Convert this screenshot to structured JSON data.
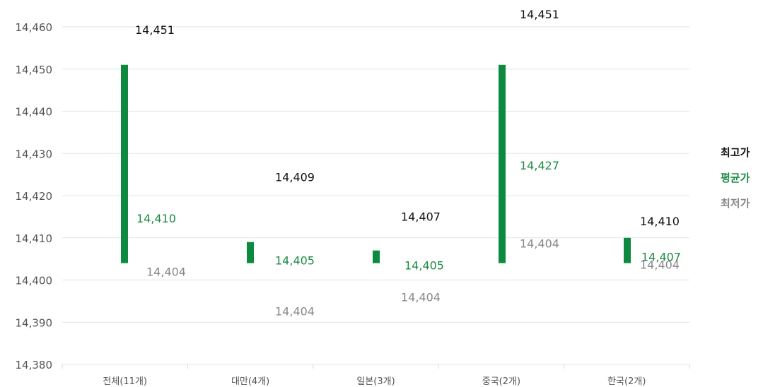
{
  "colors": {
    "high": "#111111",
    "avg": "#1e8a45",
    "low": "#888888",
    "bar": "#0d8a3f",
    "grid": "#e3e3e3",
    "axis_text": "#555555"
  },
  "legend": {
    "high": "최고가",
    "avg": "평균가",
    "low": "최저가"
  },
  "chart_data": {
    "type": "bar",
    "categories": [
      "전체(11개)",
      "대만(4개)",
      "일본(3개)",
      "중국(2개)",
      "한국(2개)"
    ],
    "ylim": [
      14380,
      14460
    ],
    "yticks": [
      "14,380",
      "14,390",
      "14,400",
      "14,410",
      "14,420",
      "14,430",
      "14,440",
      "14,450",
      "14,460"
    ],
    "series": [
      {
        "name": "최고가",
        "values": [
          14451,
          14409,
          14407,
          14451,
          14410
        ],
        "labels": [
          "14,451",
          "14,409",
          "14,407",
          "14,451",
          "14,410"
        ]
      },
      {
        "name": "평균가",
        "values": [
          14410,
          14405,
          14405,
          14427,
          14407
        ],
        "labels": [
          "14,410",
          "14,405",
          "14,405",
          "14,427",
          "14,407"
        ]
      },
      {
        "name": "최저가",
        "values": [
          14404,
          14404,
          14404,
          14404,
          14404
        ],
        "labels": [
          "14,404",
          "14,404",
          "14,404",
          "14,404",
          "14,404"
        ]
      }
    ],
    "grid": true,
    "legend_position": "right"
  }
}
